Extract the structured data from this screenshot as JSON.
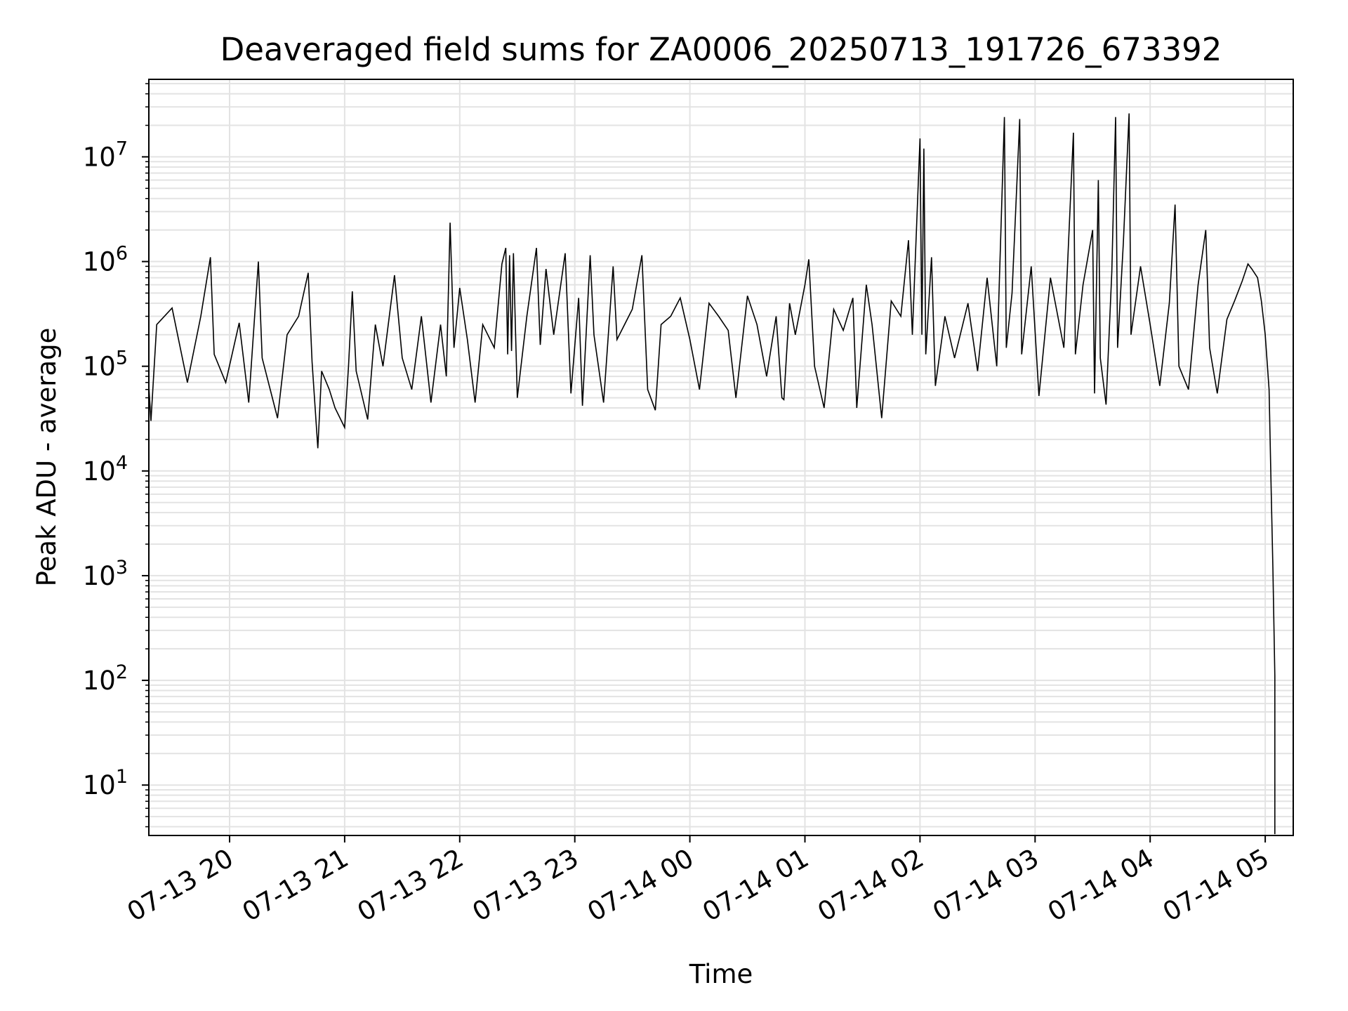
{
  "chart_data": {
    "type": "line",
    "title": "Deaveraged field sums for ZA0006_20250713_191726_673392",
    "xlabel": "Time",
    "ylabel": "Peak ADU - average",
    "yscale": "log",
    "ylim": [
      3.3,
      55000000
    ],
    "xlim": [
      "07-13 19:17",
      "07-14 05:15"
    ],
    "grid": true,
    "x_tick_labels": [
      "07-13 20",
      "07-13 21",
      "07-13 22",
      "07-13 23",
      "07-14 00",
      "07-14 01",
      "07-14 02",
      "07-14 03",
      "07-14 04",
      "07-14 05"
    ],
    "y_ticks": [
      {
        "base": "10",
        "exp": "1"
      },
      {
        "base": "10",
        "exp": "2"
      },
      {
        "base": "10",
        "exp": "3"
      },
      {
        "base": "10",
        "exp": "4"
      },
      {
        "base": "10",
        "exp": "5"
      },
      {
        "base": "10",
        "exp": "6"
      },
      {
        "base": "10",
        "exp": "7"
      }
    ],
    "series": [
      {
        "color": "#000000",
        "points": [
          [
            "07-13 19:17",
            120000
          ],
          [
            "07-13 19:19",
            30000
          ],
          [
            "07-13 19:22",
            250000
          ],
          [
            "07-13 19:30",
            360000
          ],
          [
            "07-13 19:38",
            70000
          ],
          [
            "07-13 19:45",
            300000
          ],
          [
            "07-13 19:50",
            1100000
          ],
          [
            "07-13 19:52",
            130000
          ],
          [
            "07-13 19:58",
            70000
          ],
          [
            "07-13 20:05",
            260000
          ],
          [
            "07-13 20:10",
            45000
          ],
          [
            "07-13 20:15",
            1000000
          ],
          [
            "07-13 20:17",
            120000
          ],
          [
            "07-13 20:25",
            32000
          ],
          [
            "07-13 20:30",
            200000
          ],
          [
            "07-13 20:36",
            300000
          ],
          [
            "07-13 20:41",
            780000
          ],
          [
            "07-13 20:43",
            110000
          ],
          [
            "07-13 20:46",
            16500
          ],
          [
            "07-13 20:48",
            90000
          ],
          [
            "07-13 20:52",
            60000
          ],
          [
            "07-13 20:55",
            40000
          ],
          [
            "07-13 21:00",
            26000
          ],
          [
            "07-13 21:02",
            100000
          ],
          [
            "07-13 21:04",
            520000
          ],
          [
            "07-13 21:06",
            90000
          ],
          [
            "07-13 21:12",
            31000
          ],
          [
            "07-13 21:16",
            250000
          ],
          [
            "07-13 21:20",
            100000
          ],
          [
            "07-13 21:26",
            740000
          ],
          [
            "07-13 21:30",
            120000
          ],
          [
            "07-13 21:35",
            60000
          ],
          [
            "07-13 21:40",
            300000
          ],
          [
            "07-13 21:45",
            45000
          ],
          [
            "07-13 21:50",
            250000
          ],
          [
            "07-13 21:53",
            80000
          ],
          [
            "07-13 21:55",
            2350000
          ],
          [
            "07-13 21:57",
            150000
          ],
          [
            "07-13 22:00",
            560000
          ],
          [
            "07-13 22:04",
            180000
          ],
          [
            "07-13 22:08",
            45000
          ],
          [
            "07-13 22:12",
            250000
          ],
          [
            "07-13 22:18",
            150000
          ],
          [
            "07-13 22:22",
            950000
          ],
          [
            "07-13 22:24",
            1350000
          ],
          [
            "07-13 22:25",
            130000
          ],
          [
            "07-13 22:26",
            1150000
          ],
          [
            "07-13 22:27",
            140000
          ],
          [
            "07-13 22:28",
            1200000
          ],
          [
            "07-13 22:30",
            50000
          ],
          [
            "07-13 22:35",
            300000
          ],
          [
            "07-13 22:40",
            1350000
          ],
          [
            "07-13 22:42",
            160000
          ],
          [
            "07-13 22:45",
            850000
          ],
          [
            "07-13 22:49",
            200000
          ],
          [
            "07-13 22:55",
            1200000
          ],
          [
            "07-13 22:58",
            55000
          ],
          [
            "07-13 23:02",
            450000
          ],
          [
            "07-13 23:04",
            42000
          ],
          [
            "07-13 23:08",
            1150000
          ],
          [
            "07-13 23:10",
            200000
          ],
          [
            "07-13 23:15",
            45000
          ],
          [
            "07-13 23:20",
            900000
          ],
          [
            "07-13 23:22",
            180000
          ],
          [
            "07-13 23:30",
            350000
          ],
          [
            "07-13 23:35",
            1150000
          ],
          [
            "07-13 23:38",
            60000
          ],
          [
            "07-13 23:42",
            38000
          ],
          [
            "07-13 23:45",
            250000
          ],
          [
            "07-13 23:50",
            300000
          ],
          [
            "07-13 23:55",
            450000
          ],
          [
            "07-14 00:00",
            180000
          ],
          [
            "07-14 00:05",
            60000
          ],
          [
            "07-14 00:10",
            400000
          ],
          [
            "07-14 00:15",
            300000
          ],
          [
            "07-14 00:20",
            220000
          ],
          [
            "07-14 00:24",
            50000
          ],
          [
            "07-14 00:30",
            470000
          ],
          [
            "07-14 00:35",
            250000
          ],
          [
            "07-14 00:40",
            80000
          ],
          [
            "07-14 00:45",
            300000
          ],
          [
            "07-14 00:48",
            50000
          ],
          [
            "07-14 00:49",
            48000
          ],
          [
            "07-14 00:52",
            400000
          ],
          [
            "07-14 00:55",
            200000
          ],
          [
            "07-14 01:00",
            600000
          ],
          [
            "07-14 01:02",
            1050000
          ],
          [
            "07-14 01:05",
            100000
          ],
          [
            "07-14 01:10",
            40000
          ],
          [
            "07-14 01:15",
            350000
          ],
          [
            "07-14 01:20",
            220000
          ],
          [
            "07-14 01:25",
            450000
          ],
          [
            "07-14 01:27",
            40000
          ],
          [
            "07-14 01:32",
            600000
          ],
          [
            "07-14 01:35",
            250000
          ],
          [
            "07-14 01:40",
            32000
          ],
          [
            "07-14 01:45",
            420000
          ],
          [
            "07-14 01:50",
            300000
          ],
          [
            "07-14 01:54",
            1600000
          ],
          [
            "07-14 01:56",
            200000
          ],
          [
            "07-14 02:00",
            15000000
          ],
          [
            "07-14 02:01",
            200000
          ],
          [
            "07-14 02:02",
            12000000
          ],
          [
            "07-14 02:03",
            130000
          ],
          [
            "07-14 02:06",
            1100000
          ],
          [
            "07-14 02:08",
            65000
          ],
          [
            "07-14 02:13",
            300000
          ],
          [
            "07-14 02:18",
            120000
          ],
          [
            "07-14 02:25",
            400000
          ],
          [
            "07-14 02:30",
            90000
          ],
          [
            "07-14 02:35",
            700000
          ],
          [
            "07-14 02:40",
            100000
          ],
          [
            "07-14 02:44",
            24000000
          ],
          [
            "07-14 02:45",
            150000
          ],
          [
            "07-14 02:48",
            500000
          ],
          [
            "07-14 02:52",
            23000000
          ],
          [
            "07-14 02:53",
            130000
          ],
          [
            "07-14 02:58",
            900000
          ],
          [
            "07-14 03:02",
            52000
          ],
          [
            "07-14 03:08",
            700000
          ],
          [
            "07-14 03:15",
            150000
          ],
          [
            "07-14 03:20",
            17000000
          ],
          [
            "07-14 03:21",
            130000
          ],
          [
            "07-14 03:25",
            600000
          ],
          [
            "07-14 03:30",
            2000000
          ],
          [
            "07-14 03:31",
            55000
          ],
          [
            "07-14 03:33",
            6000000
          ],
          [
            "07-14 03:34",
            120000
          ],
          [
            "07-14 03:37",
            43000
          ],
          [
            "07-14 03:40",
            800000
          ],
          [
            "07-14 03:42",
            24000000
          ],
          [
            "07-14 03:43",
            150000
          ],
          [
            "07-14 03:46",
            1500000
          ],
          [
            "07-14 03:49",
            26000000
          ],
          [
            "07-14 03:50",
            200000
          ],
          [
            "07-14 03:55",
            900000
          ],
          [
            "07-14 04:00",
            250000
          ],
          [
            "07-14 04:05",
            65000
          ],
          [
            "07-14 04:10",
            400000
          ],
          [
            "07-14 04:13",
            3500000
          ],
          [
            "07-14 04:15",
            100000
          ],
          [
            "07-14 04:20",
            60000
          ],
          [
            "07-14 04:25",
            600000
          ],
          [
            "07-14 04:29",
            2000000
          ],
          [
            "07-14 04:31",
            150000
          ],
          [
            "07-14 04:35",
            55000
          ],
          [
            "07-14 04:40",
            280000
          ],
          [
            "07-14 04:44",
            420000
          ],
          [
            "07-14 04:48",
            650000
          ],
          [
            "07-14 04:51",
            950000
          ],
          [
            "07-14 04:53",
            850000
          ],
          [
            "07-14 04:56",
            700000
          ],
          [
            "07-14 04:58",
            420000
          ],
          [
            "07-14 05:00",
            200000
          ],
          [
            "07-14 05:02",
            60000
          ],
          [
            "07-14 05:03",
            8000
          ],
          [
            "07-14 05:04",
            1200
          ],
          [
            "07-14 05:05",
            110
          ],
          [
            "07-14 05:05",
            3.4
          ]
        ]
      }
    ]
  }
}
